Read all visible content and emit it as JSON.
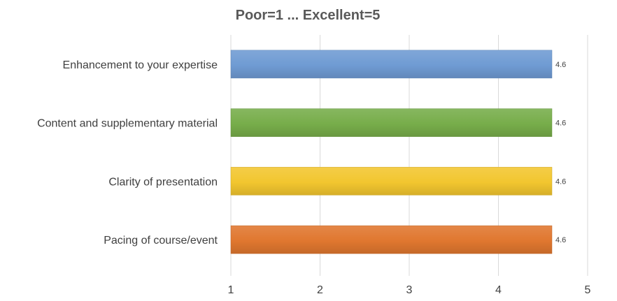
{
  "chart_data": {
    "type": "bar",
    "orientation": "horizontal",
    "title": "Poor=1 ... Excellent=5",
    "xlabel": "",
    "ylabel": "",
    "categories": [
      "Enhancement to your expertise",
      "Content and supplementary material",
      "Clarity of presentation",
      "Pacing of course/event"
    ],
    "values": [
      4.6,
      4.6,
      4.6,
      4.6
    ],
    "data_labels": [
      "4.6",
      "4.6",
      "4.6",
      "4.6"
    ],
    "bar_colors": [
      "#6f9bd3",
      "#77ad4a",
      "#f2c62f",
      "#e0772f"
    ],
    "xlim": [
      1,
      5
    ],
    "x_ticks": [
      1,
      2,
      3,
      4,
      5
    ],
    "x_tick_labels": [
      "1",
      "2",
      "3",
      "4",
      "5"
    ],
    "grid": true,
    "legend": "none"
  }
}
